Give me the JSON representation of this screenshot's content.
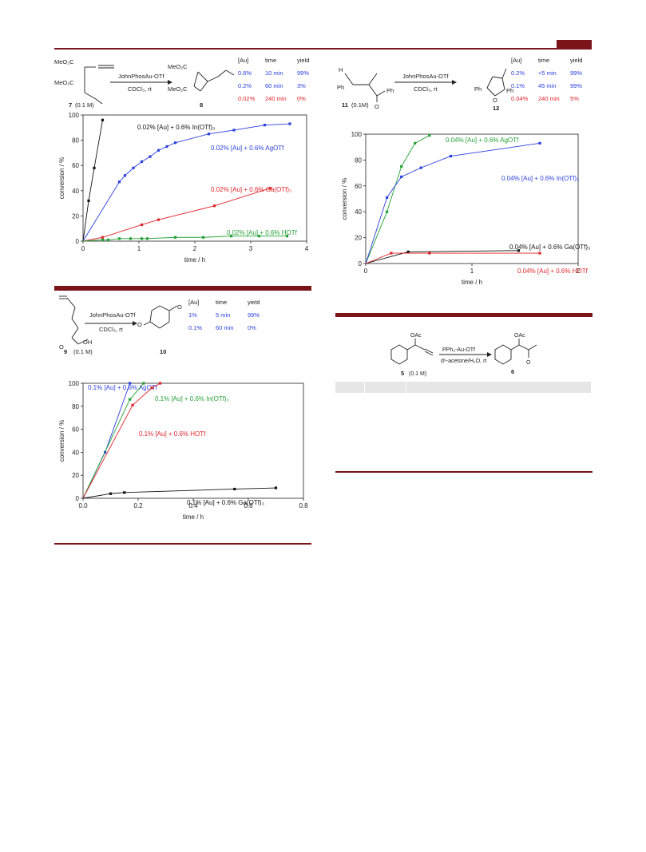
{
  "colors": {
    "accent": "#7a1418",
    "blue": "#2b3fe0",
    "red": "#e0242a",
    "green": "#23a035",
    "black": "#111111"
  },
  "scheme1": {
    "reagent": "JohnPhosAu-OTf",
    "conditions": "CDCl₃, rt",
    "sm_label": "7",
    "sm_conc": "(0.1 M)",
    "product_label": "8",
    "ester_labels": [
      "MeO₂C",
      "MeO₂C",
      "MeO₂C",
      "MeO₂C"
    ],
    "table": {
      "headers": [
        "[Au]",
        "time",
        "yield"
      ],
      "rows": [
        [
          "0.6%",
          "10 min",
          "99%"
        ],
        [
          "0.2%",
          "60 min",
          "3%"
        ],
        [
          "0.02%",
          "240 min",
          "0%"
        ]
      ],
      "row_colors": [
        "blue",
        "blue",
        "red"
      ]
    }
  },
  "scheme2": {
    "reagent": "JohnPhosAu-OTf",
    "conditions": "CDCl₃, rt",
    "sm_label": "11",
    "sm_conc": "(0.1M)",
    "product_label": "12",
    "atom_labels": [
      "H",
      "Ph",
      "Ph",
      "O",
      "Ph",
      "Ph",
      "O"
    ],
    "table": {
      "headers": [
        "[Au]",
        "time",
        "yield"
      ],
      "rows": [
        [
          "0.2%",
          "<5 min",
          "99%"
        ],
        [
          "0.1%",
          "45 min",
          "99%"
        ],
        [
          "0.04%",
          "240 min",
          "5%"
        ]
      ],
      "row_colors": [
        "blue",
        "blue",
        "red"
      ]
    }
  },
  "scheme3": {
    "reagent": "JohnPhosAu-OTf",
    "conditions": "CDCl₃, rt",
    "sm_label": "9",
    "sm_conc": "(0.1 M)",
    "product_label": "10",
    "atom_labels": [
      "O",
      "OH",
      "O",
      "O"
    ],
    "table": {
      "headers": [
        "[Au]",
        "time",
        "yield"
      ],
      "rows": [
        [
          "1%",
          "5 min",
          "99%"
        ],
        [
          "0.1%",
          "60 min",
          "0%"
        ]
      ],
      "row_colors": [
        "blue",
        "blue"
      ]
    }
  },
  "scheme4": {
    "reagent": "PPh₃-Au-OTf",
    "conditions": "d⁶-acetone/H₂O, rt",
    "sm_label": "5",
    "sm_conc": "(0.1 M)",
    "product_label": "6",
    "atom_labels": [
      "OAc",
      "OAc",
      "O"
    ]
  },
  "chart_data": [
    {
      "type": "line",
      "xlabel": "time / h",
      "ylabel": "conversion / %",
      "xlim": [
        0,
        4
      ],
      "ylim": [
        0,
        100
      ],
      "xticks": [
        "0",
        "1",
        "2",
        "3",
        "4"
      ],
      "yticks": [
        "0",
        "20",
        "40",
        "60",
        "80",
        "100"
      ],
      "series": [
        {
          "name": "0.02% [Au] + 0.6% In(OTf)₃",
          "color": "black",
          "x": [
            0,
            0.1,
            0.2,
            0.35
          ],
          "y": [
            0,
            32,
            58,
            96
          ]
        },
        {
          "name": "0.02% [Au] + 0.6% AgOTf",
          "color": "blue",
          "x": [
            0,
            0.65,
            0.75,
            0.9,
            1.05,
            1.2,
            1.35,
            1.5,
            1.65,
            2.25,
            2.7,
            3.25,
            3.7
          ],
          "y": [
            0,
            47,
            52,
            58,
            63,
            67,
            72,
            75,
            78,
            85,
            88,
            92,
            93
          ]
        },
        {
          "name": "0.02% [Au] + 0.6% Ga(OTf)₃",
          "color": "red",
          "x": [
            0,
            0.35,
            1.05,
            1.35,
            2.35,
            3.35
          ],
          "y": [
            0,
            3,
            13,
            17,
            28,
            42
          ]
        },
        {
          "name": "0.02% [Au] + 0.6% HOTf",
          "color": "green",
          "x": [
            0,
            0.35,
            0.45,
            0.65,
            0.85,
            1.05,
            1.15,
            1.65,
            2.15,
            2.65,
            3.15,
            3.65
          ],
          "y": [
            0,
            1,
            1,
            2,
            2,
            2,
            2,
            3,
            3,
            4,
            4,
            4
          ]
        }
      ]
    },
    {
      "type": "line",
      "xlabel": "time / h",
      "ylabel": "conversion / %",
      "xlim": [
        0,
        2.5
      ],
      "ylim": [
        0,
        100
      ],
      "xticks": [
        "0",
        "1",
        "2"
      ],
      "yticks": [
        "0",
        "20",
        "40",
        "60",
        "80",
        "100"
      ],
      "series": [
        {
          "name": "0.04% [Au] + 0.6% AgOTf",
          "color": "green",
          "x": [
            0,
            0.25,
            0.42,
            0.58,
            0.75
          ],
          "y": [
            0,
            40,
            75,
            93,
            99
          ]
        },
        {
          "name": "0.04% [Au] + 0.6% In(OTf)₃",
          "color": "blue",
          "x": [
            0,
            0.25,
            0.42,
            0.65,
            1.0,
            2.05
          ],
          "y": [
            0,
            51,
            67,
            74,
            83,
            93
          ]
        },
        {
          "name": "0.04% [Au] + 0.6% Ga(OTf)₃",
          "color": "black",
          "x": [
            0,
            0.5,
            1.8
          ],
          "y": [
            0,
            9,
            10
          ]
        },
        {
          "name": "0.04% [Au] + 0.6% HOTf",
          "color": "red",
          "x": [
            0,
            0.3,
            0.75,
            2.05
          ],
          "y": [
            0,
            8,
            8,
            8
          ]
        }
      ]
    },
    {
      "type": "line",
      "xlabel": "time / h",
      "ylabel": "conversion / %",
      "xlim": [
        0,
        0.8
      ],
      "ylim": [
        0,
        100
      ],
      "xticks": [
        "0.0",
        "0.2",
        "0.4",
        "0.6",
        "0.8"
      ],
      "yticks": [
        "0",
        "20",
        "40",
        "60",
        "80",
        "100"
      ],
      "series": [
        {
          "name": "0.1% [Au] + 0.6% AgOTf",
          "color": "blue",
          "x": [
            0,
            0.08,
            0.17
          ],
          "y": [
            0,
            40,
            100
          ]
        },
        {
          "name": "0.1% [Au] + 0.6% In(OTf)₃",
          "color": "green",
          "x": [
            0,
            0.17,
            0.22
          ],
          "y": [
            0,
            86,
            100
          ]
        },
        {
          "name": "0.1% [Au] + 0.6% HOTf",
          "color": "red",
          "x": [
            0,
            0.18,
            0.25,
            0.28
          ],
          "y": [
            0,
            81,
            96,
            100
          ]
        },
        {
          "name": "0.1% [Au] + 0.6% Ga(OTf)₃",
          "color": "black",
          "x": [
            0,
            0.1,
            0.15,
            0.55,
            0.7
          ],
          "y": [
            0,
            4,
            5,
            8,
            9
          ]
        }
      ]
    }
  ]
}
